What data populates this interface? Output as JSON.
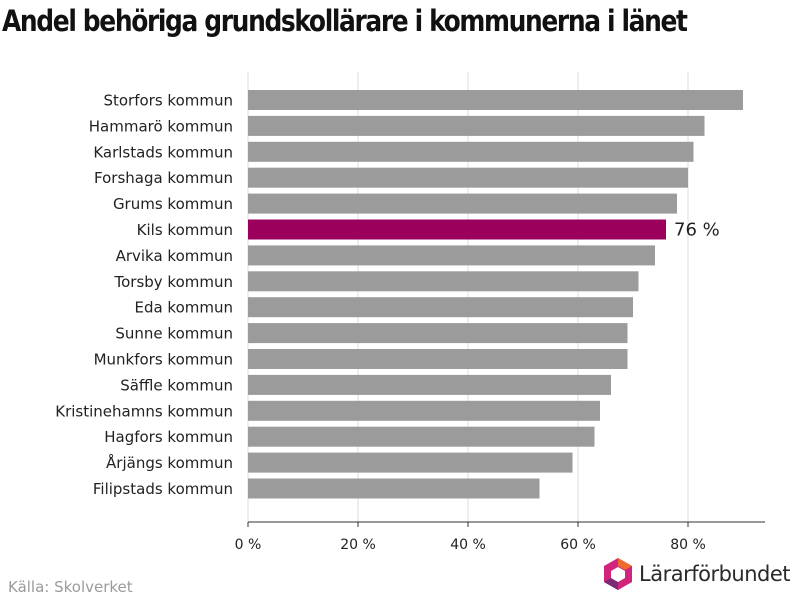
{
  "title": "Andel behöriga grundskollärare i kommunerna i länet",
  "source": "Källa: Skolverket",
  "brand": {
    "name": "Lärarförbundet",
    "logo_icon": "hexagon-logo-icon"
  },
  "colors": {
    "bar": "#9b9b9b",
    "highlight": "#9a005c",
    "grid": "#dddddd",
    "axis": "#333333"
  },
  "chart_data": {
    "type": "bar",
    "orientation": "horizontal",
    "categories": [
      "Storfors kommun",
      "Hammarö kommun",
      "Karlstads kommun",
      "Forshaga kommun",
      "Grums kommun",
      "Kils kommun",
      "Arvika kommun",
      "Torsby kommun",
      "Eda kommun",
      "Sunne kommun",
      "Munkfors kommun",
      "Säffle kommun",
      "Kristinehamns kommun",
      "Hagfors kommun",
      "Årjängs kommun",
      "Filipstads kommun"
    ],
    "values": [
      90,
      83,
      81,
      80,
      78,
      76,
      74,
      71,
      70,
      69,
      69,
      66,
      64,
      63,
      59,
      53
    ],
    "highlight_index": 5,
    "highlight_label": "76 %",
    "xlim": [
      0,
      94
    ],
    "xticks": [
      0,
      20,
      40,
      60,
      80
    ],
    "xtick_labels": [
      "0 %",
      "20 %",
      "40 %",
      "60 %",
      "80 %"
    ],
    "grid": true,
    "xlabel": "",
    "ylabel": ""
  }
}
